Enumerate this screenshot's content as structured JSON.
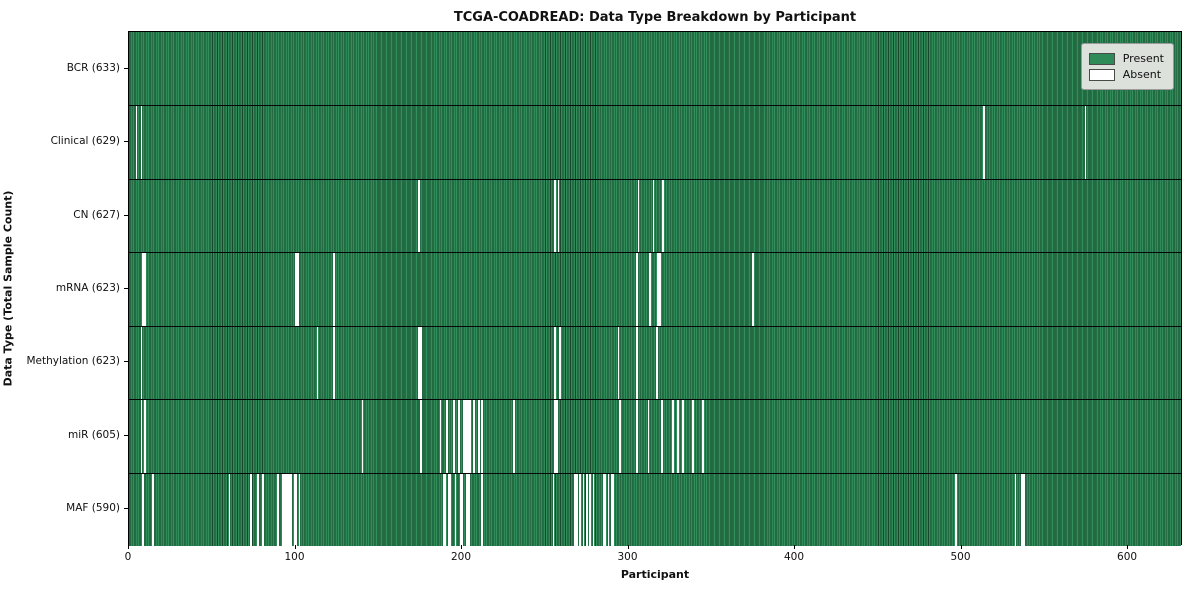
{
  "figure": {
    "title": "TCGA-COADREAD: Data Type Breakdown by Participant",
    "xlabel": "Participant",
    "ylabel": "Data Type (Total Sample Count)"
  },
  "legend": {
    "items": [
      {
        "label": "Present",
        "color": "#2e8b57"
      },
      {
        "label": "Absent",
        "color": "#ffffff"
      }
    ]
  },
  "colors": {
    "present": "#2e8b57",
    "absent": "#ffffff",
    "bar_edge": "#16492c",
    "row_separator": "#050505",
    "legend_background": "#dce1dc"
  },
  "chart_data": {
    "type": "heatmap",
    "title": "TCGA-COADREAD: Data Type Breakdown by Participant",
    "xlabel": "Participant",
    "ylabel": "Data Type (Total Sample Count)",
    "x_ticks": [
      0,
      100,
      200,
      300,
      400,
      500,
      600
    ],
    "x_range": [
      0,
      633
    ],
    "total_participants": 633,
    "legend_entries": [
      "Present",
      "Absent"
    ],
    "legend_position": "upper right",
    "grid": false,
    "rows": [
      {
        "name": "BCR",
        "label": "BCR (633)",
        "total_samples": 633,
        "absent_participants": []
      },
      {
        "name": "Clinical",
        "label": "Clinical (629)",
        "total_samples": 629,
        "absent_participants": [
          4,
          7,
          514,
          575
        ]
      },
      {
        "name": "CN",
        "label": "CN (627)",
        "total_samples": 627,
        "absent_participants": [
          174,
          256,
          258,
          306,
          315,
          321
        ]
      },
      {
        "name": "mRNA",
        "label": "mRNA (623)",
        "total_samples": 623,
        "absent_participants": [
          8,
          9,
          100,
          101,
          123,
          305,
          313,
          318,
          319,
          375
        ]
      },
      {
        "name": "Methylation",
        "label": "Methylation (623)",
        "total_samples": 623,
        "absent_participants": [
          7,
          113,
          123,
          174,
          175,
          256,
          259,
          294,
          305,
          317
        ]
      },
      {
        "name": "miR",
        "label": "miR (605)",
        "total_samples": 605,
        "absent_participants": [
          7,
          9,
          140,
          175,
          187,
          191,
          195,
          198,
          201,
          202,
          203,
          204,
          205,
          207,
          210,
          212,
          231,
          256,
          257,
          295,
          305,
          312,
          320,
          327,
          330,
          333,
          339,
          345
        ]
      },
      {
        "name": "MAF",
        "label": "MAF (590)",
        "total_samples": 590,
        "absent_participants": [
          8,
          14,
          60,
          73,
          77,
          80,
          89,
          92,
          93,
          94,
          95,
          96,
          97,
          99,
          100,
          102,
          189,
          190,
          192,
          193,
          196,
          199,
          200,
          203,
          204,
          212,
          255,
          268,
          269,
          271,
          273,
          275,
          277,
          279,
          285,
          286,
          288,
          290,
          291,
          497,
          533,
          537,
          538
        ]
      }
    ]
  }
}
